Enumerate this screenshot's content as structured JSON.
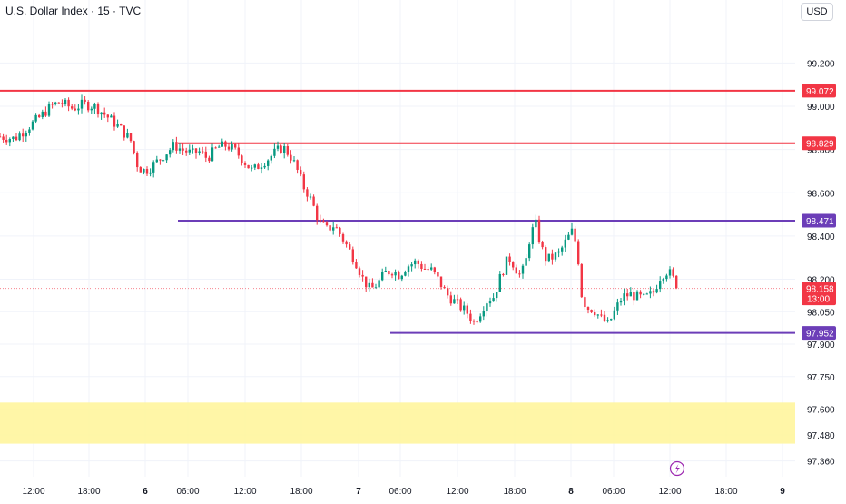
{
  "header": {
    "symbol_title": "U.S. Dollar Index · 15 · TVC",
    "currency_label": "USD"
  },
  "colors": {
    "up": "#089981",
    "down": "#f23645",
    "resistance": "#f23645",
    "support": "#6c3eb8",
    "zone": "#fff59d",
    "axis_text": "#131722"
  },
  "badges": {
    "countdown": "13:00"
  },
  "icons": {
    "replay": "lightning-icon"
  },
  "chart_data": {
    "type": "candlestick",
    "title": "U.S. Dollar Index · 15 · TVC",
    "ylim": [
      97.3,
      99.38
    ],
    "y_ticks": [
      "99.200",
      "99.000",
      "98.800",
      "98.600",
      "98.400",
      "98.200",
      "98.050",
      "97.900",
      "97.750",
      "97.600",
      "97.480",
      "97.360"
    ],
    "x_ticks": [
      "12:00",
      "18:00",
      "6",
      "06:00",
      "12:00",
      "18:00",
      "7",
      "06:00",
      "12:00",
      "18:00",
      "8",
      "06:00",
      "12:00",
      "18:00",
      "9"
    ],
    "current_price": "98.158",
    "levels": [
      {
        "value": "99.072",
        "color": "resistance",
        "full_width": true
      },
      {
        "value": "98.829",
        "color": "resistance",
        "start_tick": "06:00"
      },
      {
        "value": "98.471",
        "color": "support",
        "start_tick": "06:00"
      },
      {
        "value": "97.952",
        "color": "support",
        "start_tick": "06:00"
      }
    ],
    "zone": {
      "from": 97.44,
      "to": 97.63
    },
    "price_path": [
      [
        0,
        98.86
      ],
      [
        0.8,
        98.85
      ],
      [
        1.5,
        98.9
      ],
      [
        2.2,
        98.95
      ],
      [
        2.8,
        99.0
      ],
      [
        3.3,
        99.02
      ],
      [
        4.0,
        98.99
      ],
      [
        4.6,
        99.01
      ],
      [
        5.2,
        99.0
      ],
      [
        5.8,
        98.96
      ],
      [
        6.6,
        98.9
      ],
      [
        7.2,
        98.84
      ],
      [
        7.6,
        98.72
      ],
      [
        8.0,
        98.7
      ],
      [
        8.6,
        98.74
      ],
      [
        9.1,
        98.78
      ],
      [
        9.6,
        98.82
      ],
      [
        10.0,
        98.8
      ],
      [
        10.6,
        98.78
      ],
      [
        11.0,
        98.79
      ],
      [
        11.4,
        98.76
      ],
      [
        12.0,
        98.81
      ],
      [
        12.5,
        98.82
      ],
      [
        13.0,
        98.79
      ],
      [
        13.5,
        98.74
      ],
      [
        13.9,
        98.7
      ],
      [
        14.3,
        98.73
      ],
      [
        14.8,
        98.76
      ],
      [
        15.2,
        98.79
      ],
      [
        15.6,
        98.81
      ],
      [
        16.0,
        98.77
      ],
      [
        16.3,
        98.72
      ],
      [
        16.7,
        98.63
      ],
      [
        17.0,
        98.59
      ],
      [
        17.3,
        98.53
      ],
      [
        17.6,
        98.46
      ],
      [
        18.0,
        98.43
      ],
      [
        18.4,
        98.45
      ],
      [
        18.8,
        98.4
      ],
      [
        19.2,
        98.34
      ],
      [
        19.6,
        98.28
      ],
      [
        20.0,
        98.2
      ],
      [
        20.4,
        98.15
      ],
      [
        20.8,
        98.18
      ],
      [
        21.2,
        98.23
      ],
      [
        21.6,
        98.24
      ],
      [
        22.0,
        98.22
      ],
      [
        22.4,
        98.26
      ],
      [
        22.9,
        98.28
      ],
      [
        23.4,
        98.25
      ],
      [
        23.8,
        98.24
      ],
      [
        24.2,
        98.19
      ],
      [
        24.6,
        98.13
      ],
      [
        25.0,
        98.1
      ],
      [
        25.4,
        98.07
      ],
      [
        25.8,
        98.04
      ],
      [
        26.1,
        98.0
      ],
      [
        26.4,
        98.04
      ],
      [
        26.8,
        98.1
      ],
      [
        27.2,
        98.12
      ],
      [
        27.6,
        98.22
      ],
      [
        28.0,
        98.3
      ],
      [
        28.3,
        98.27
      ],
      [
        28.6,
        98.22
      ],
      [
        28.9,
        98.25
      ],
      [
        29.2,
        98.4
      ],
      [
        29.5,
        98.46
      ],
      [
        29.8,
        98.35
      ],
      [
        30.1,
        98.29
      ],
      [
        30.4,
        98.3
      ],
      [
        30.8,
        98.32
      ],
      [
        31.2,
        98.38
      ],
      [
        31.5,
        98.42
      ],
      [
        31.8,
        98.35
      ],
      [
        32.0,
        98.14
      ],
      [
        32.3,
        98.07
      ],
      [
        32.7,
        98.06
      ],
      [
        33.1,
        98.02
      ],
      [
        33.5,
        97.99
      ],
      [
        33.9,
        98.06
      ],
      [
        34.3,
        98.12
      ],
      [
        34.7,
        98.13
      ],
      [
        35.1,
        98.12
      ],
      [
        35.5,
        98.11
      ],
      [
        36.0,
        98.14
      ],
      [
        36.4,
        98.22
      ],
      [
        36.8,
        98.24
      ],
      [
        37.1,
        98.2
      ],
      [
        37.4,
        98.16
      ]
    ]
  }
}
